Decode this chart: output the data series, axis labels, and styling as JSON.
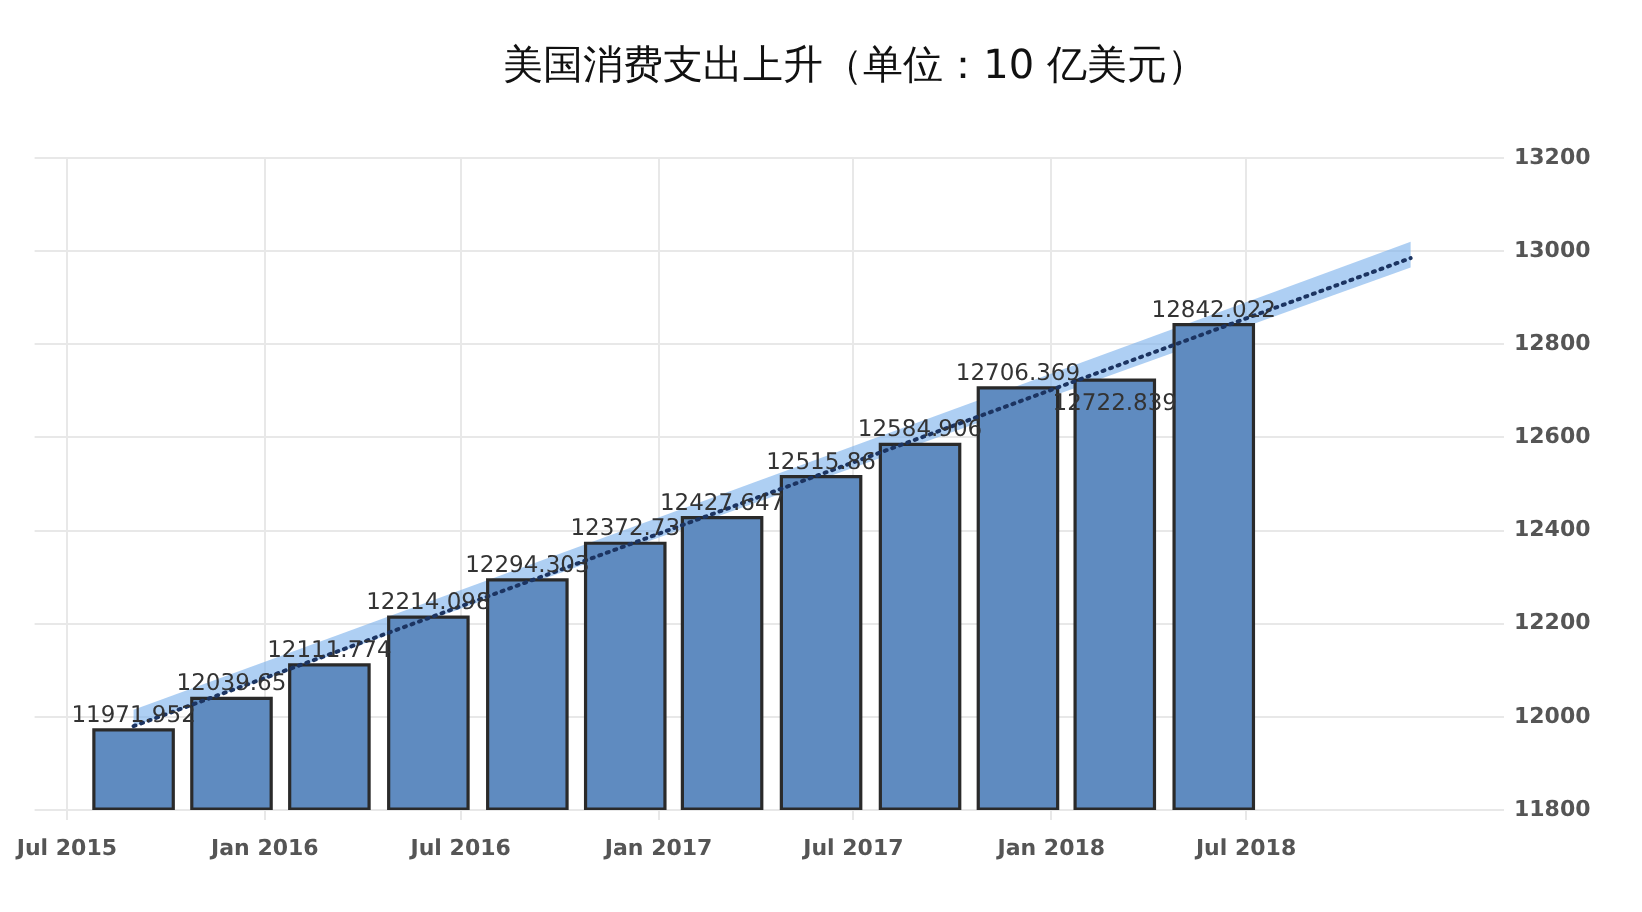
{
  "chart_data": {
    "type": "bar",
    "title": "美国消费支出上升（单位：10 亿美元）",
    "x": [
      "2015-09",
      "2015-12",
      "2016-03",
      "2016-06",
      "2016-09",
      "2016-12",
      "2017-03",
      "2017-06",
      "2017-09",
      "2017-12",
      "2018-03",
      "2018-06"
    ],
    "series": [
      {
        "color": "#5f8bc0",
        "values": [
          11971.952,
          12039.65,
          12111.774,
          12214.098,
          12294.303,
          12372.73,
          12427.647,
          12515.86,
          12584.906,
          12706.369,
          12722.839,
          12842.022
        ],
        "value_labels": [
          "11971.952",
          "12039.65",
          "12111.774",
          "12214.098",
          "12294.303",
          "12372.73",
          "12427.647",
          "12515.86",
          "12584.906",
          "12706.369",
          "12722.839",
          "12842.022"
        ]
      },
      {
        "type": "line",
        "color": "#1c3461",
        "x": [
          "2015-09",
          "2018-12"
        ],
        "values": [
          11980,
          12985
        ],
        "lower": [
          11980,
          12965
        ],
        "upper": [
          12015,
          13020
        ],
        "line_style": "dotted",
        "marker": "none"
      }
    ],
    "xlim": [
      "2015-06",
      "2019-01"
    ],
    "xticks": [
      {
        "value": "2015-07",
        "label": "Jul 2015"
      },
      {
        "value": "2016-01",
        "label": "Jan 2016"
      },
      {
        "value": "2016-07",
        "label": "Jul 2016"
      },
      {
        "value": "2017-01",
        "label": "Jan 2017"
      },
      {
        "value": "2017-07",
        "label": "Jul 2017"
      },
      {
        "value": "2018-01",
        "label": "Jan 2018"
      },
      {
        "value": "2018-07",
        "label": "Jul 2018"
      }
    ],
    "ylim": [
      11800,
      13200
    ],
    "yticks": [
      11800,
      12000,
      12200,
      12400,
      12600,
      12800,
      13000,
      13200
    ],
    "grid": true,
    "legend": false
  }
}
